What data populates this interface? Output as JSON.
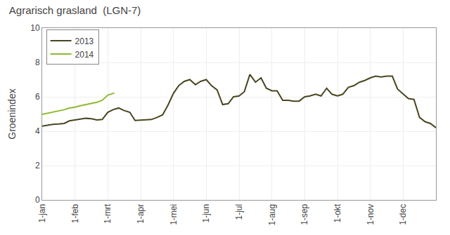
{
  "chart_data": {
    "type": "line",
    "title": "Agrarisch grasland  (LGN-7)",
    "ylabel": "Groenindex",
    "xlim": [
      0,
      12
    ],
    "xticks": [
      {
        "value": 0,
        "label": "1-jan"
      },
      {
        "value": 1,
        "label": "1-feb"
      },
      {
        "value": 2,
        "label": "1-mrt"
      },
      {
        "value": 3,
        "label": "1-apr"
      },
      {
        "value": 4,
        "label": "1-mei"
      },
      {
        "value": 5,
        "label": "1-jun"
      },
      {
        "value": 6,
        "label": "1-jul"
      },
      {
        "value": 7,
        "label": "1-aug"
      },
      {
        "value": 8,
        "label": "1-sep"
      },
      {
        "value": 9,
        "label": "1-okt"
      },
      {
        "value": 10,
        "label": "1-nov"
      },
      {
        "value": 11,
        "label": "1-dec"
      }
    ],
    "ylim": [
      0,
      10
    ],
    "yticks": [
      0,
      2,
      4,
      6,
      8,
      10
    ],
    "grid": true,
    "legend": "upper left",
    "series": [
      {
        "name": "2013",
        "color": "#4a4520",
        "x": [
          0,
          0.16,
          0.33,
          0.5,
          0.67,
          0.83,
          1.0,
          1.16,
          1.33,
          1.5,
          1.67,
          1.83,
          2.0,
          2.16,
          2.33,
          2.5,
          2.67,
          2.83,
          3.0,
          3.16,
          3.33,
          3.5,
          3.67,
          3.83,
          4.0,
          4.16,
          4.33,
          4.5,
          4.67,
          4.83,
          5.0,
          5.16,
          5.33,
          5.5,
          5.67,
          5.83,
          6.0,
          6.16,
          6.33,
          6.5,
          6.67,
          6.83,
          7.0,
          7.16,
          7.33,
          7.5,
          7.67,
          7.83,
          8.0,
          8.16,
          8.33,
          8.5,
          8.67,
          8.83,
          9.0,
          9.16,
          9.33,
          9.5,
          9.67,
          9.83,
          10.0,
          10.16,
          10.33,
          10.5,
          10.67,
          10.83,
          11.0,
          11.16,
          11.33,
          11.5,
          11.67,
          11.83,
          12.0
        ],
        "values": [
          4.3,
          4.35,
          4.4,
          4.42,
          4.45,
          4.6,
          4.65,
          4.68,
          4.75,
          4.72,
          4.65,
          4.68,
          5.1,
          5.25,
          5.35,
          5.2,
          5.1,
          4.62,
          4.65,
          4.65,
          4.68,
          4.8,
          4.95,
          5.5,
          6.2,
          6.65,
          6.9,
          7.0,
          6.7,
          6.9,
          7.0,
          6.65,
          6.4,
          5.55,
          5.6,
          6.0,
          6.05,
          6.3,
          7.3,
          6.85,
          7.1,
          6.5,
          6.35,
          6.35,
          5.8,
          5.8,
          5.75,
          5.75,
          6.0,
          6.05,
          6.15,
          6.05,
          6.5,
          6.15,
          6.05,
          6.15,
          6.55,
          6.65,
          6.85,
          6.95,
          7.1,
          7.2,
          7.15,
          7.2,
          7.2,
          6.45,
          6.15,
          5.9,
          5.85,
          4.8,
          4.55,
          4.45,
          4.2
        ]
      },
      {
        "name": "2014",
        "color": "#8fba30",
        "x": [
          0,
          0.16,
          0.33,
          0.5,
          0.67,
          0.83,
          1.0,
          1.16,
          1.33,
          1.5,
          1.67,
          1.83,
          2.0,
          2.2
        ],
        "values": [
          4.98,
          5.05,
          5.1,
          5.18,
          5.25,
          5.35,
          5.4,
          5.48,
          5.55,
          5.62,
          5.68,
          5.8,
          6.1,
          6.22
        ]
      }
    ]
  }
}
